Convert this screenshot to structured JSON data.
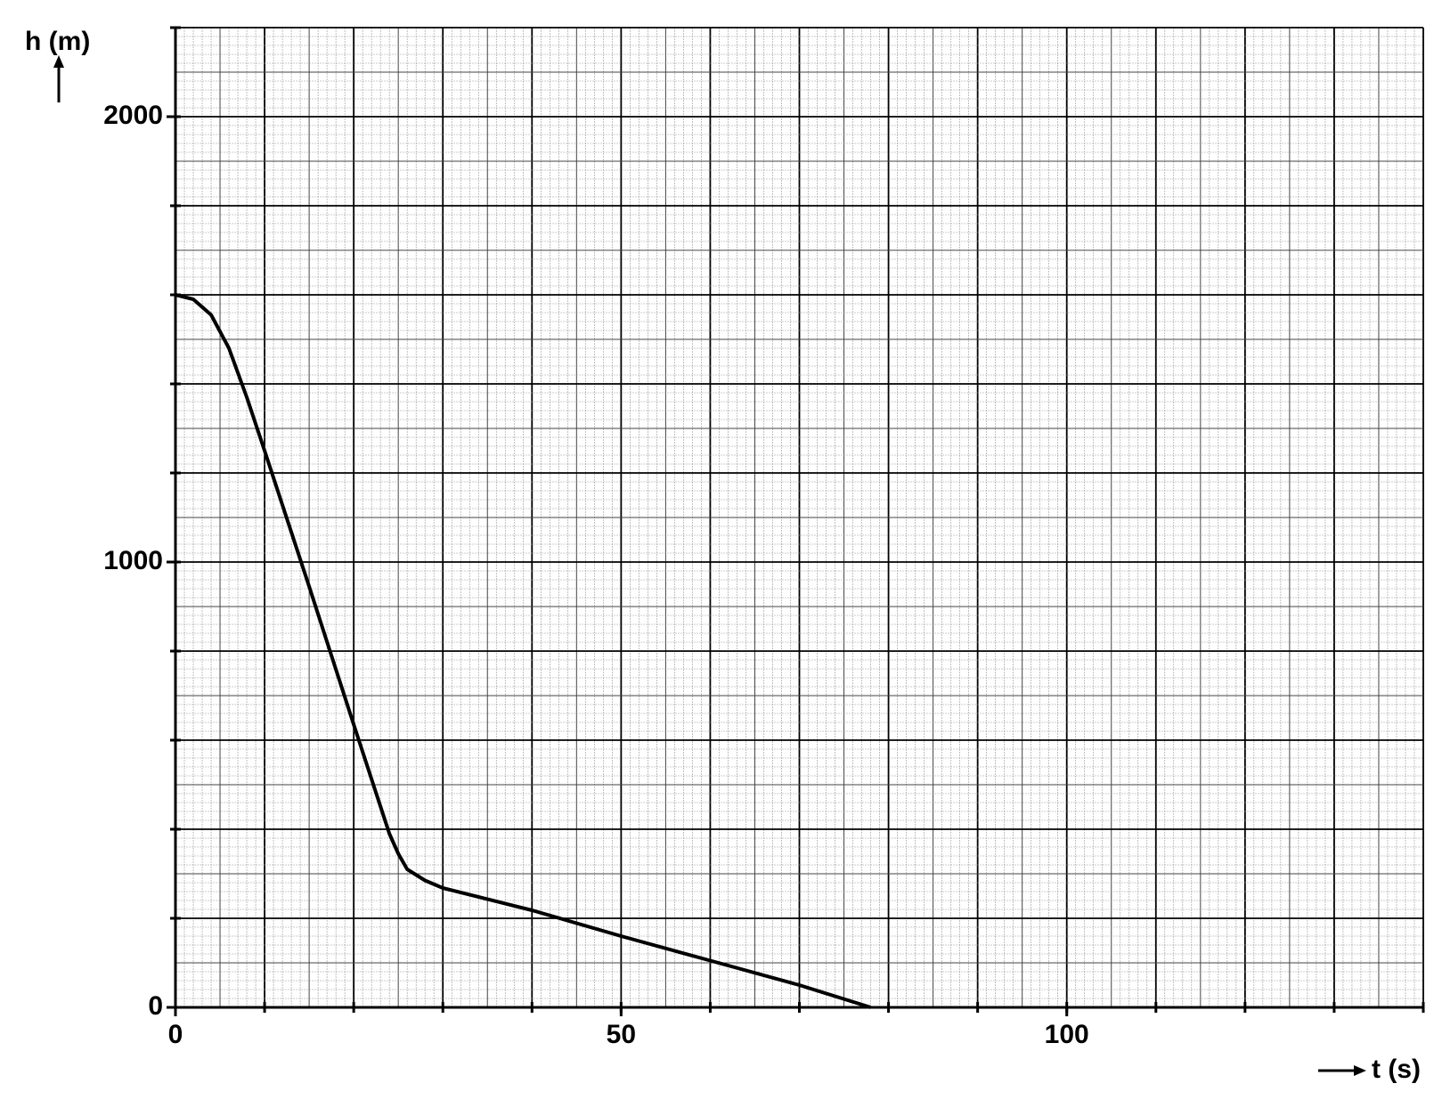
{
  "chart_data": {
    "type": "line",
    "ylabel": "h (m)",
    "xlabel": "t (s)",
    "x": [
      0,
      2,
      4,
      6,
      8,
      10,
      15,
      20,
      24,
      25,
      26,
      28,
      30,
      40,
      50,
      60,
      70,
      78
    ],
    "series": [
      {
        "color": "#000000",
        "values": [
          1600,
          1590,
          1555,
          1480,
          1370,
          1250,
          945,
          635,
          390,
          345,
          310,
          285,
          268,
          218,
          160,
          105,
          50,
          0
        ]
      }
    ],
    "xlim": [
      0,
      140
    ],
    "ylim": [
      0,
      2200
    ],
    "xticks": [
      0,
      50,
      100
    ],
    "yticks": [
      0,
      1000,
      2000
    ],
    "grid": true
  }
}
